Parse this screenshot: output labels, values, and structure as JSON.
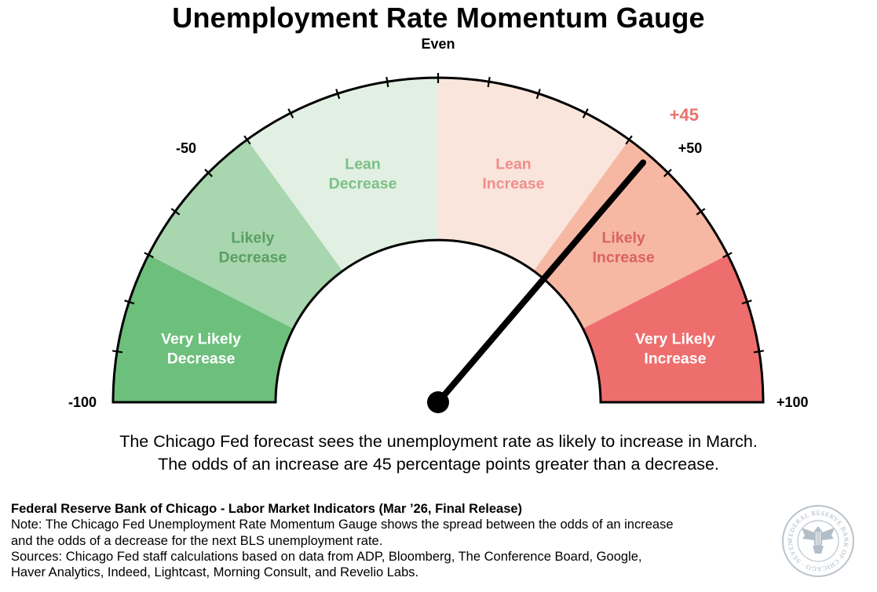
{
  "title": "Unemployment Rate Momentum Gauge",
  "chart_data": {
    "type": "gauge",
    "title": "Unemployment Rate Momentum Gauge",
    "range": [
      -100,
      100
    ],
    "value": 45,
    "value_label": "+45",
    "value_color": "#e8736f",
    "scale_labels": [
      {
        "value": -100,
        "text": "-100"
      },
      {
        "value": -50,
        "text": "-50"
      },
      {
        "value": 0,
        "text": "Even"
      },
      {
        "value": 50,
        "text": "+50"
      },
      {
        "value": 100,
        "text": "+100"
      }
    ],
    "tick_step": 10,
    "zones": [
      {
        "from": -100,
        "to": -70,
        "lines": [
          "Very Likely",
          "Decrease"
        ],
        "fill": "#6dbf7c",
        "text_color": "#ffffff"
      },
      {
        "from": -70,
        "to": -40,
        "lines": [
          "Likely",
          "Decrease"
        ],
        "fill": "#a8d6ae",
        "text_color": "#5a9e65"
      },
      {
        "from": -40,
        "to": 0,
        "lines": [
          "Lean",
          "Decrease"
        ],
        "fill": "#e1f0e3",
        "text_color": "#7dbf86"
      },
      {
        "from": 0,
        "to": 40,
        "lines": [
          "Lean",
          "Increase"
        ],
        "fill": "#f9e5db",
        "text_color": "#f08e8b"
      },
      {
        "from": 40,
        "to": 70,
        "lines": [
          "Likely",
          "Increase"
        ],
        "fill": "#f7b8a3",
        "text_color": "#d9625f"
      },
      {
        "from": 70,
        "to": 100,
        "lines": [
          "Very Likely",
          "Increase"
        ],
        "fill": "#ee6e6e",
        "text_color": "#ffffff"
      }
    ]
  },
  "summary": {
    "line1": "The Chicago Fed forecast sees the unemployment rate as likely to increase in March.",
    "line2": "The odds of an increase are 45 percentage points greater than a decrease."
  },
  "footer": {
    "source": "Federal Reserve Bank of Chicago - Labor Market Indicators (Mar ’26, Final Release)",
    "note1": "Note: The Chicago Fed Unemployment Rate Momentum Gauge shows the spread between the odds of an increase",
    "note2": "and the odds of a decrease for the next BLS unemployment rate.",
    "sources1": "Sources: Chicago Fed staff calculations based on data from ADP, Bloomberg, The Conference Board, Google,",
    "sources2": "Haver Analytics, Indeed, Lightcast, Morning Consult, and Revelio Labs."
  },
  "seal": {
    "icon": "federal-reserve-seal-icon",
    "text": "FEDERAL RESERVE BANK OF CHICAGO · SEVENTH DISTRICT"
  }
}
